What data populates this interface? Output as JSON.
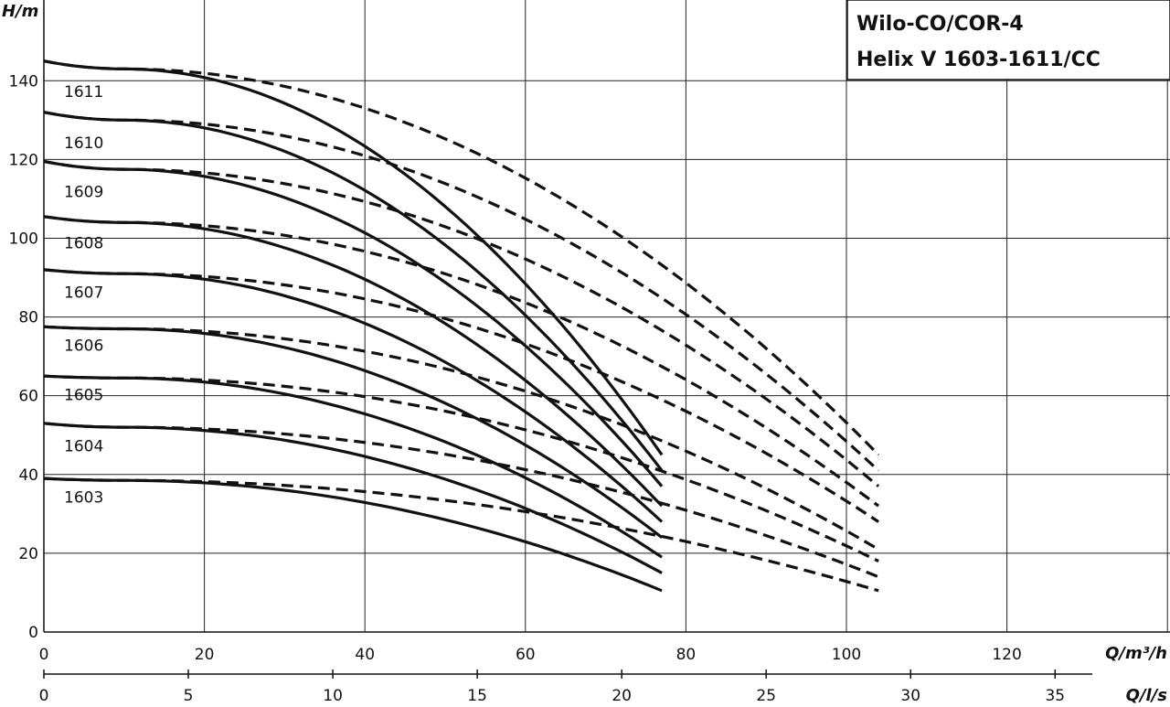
{
  "chart_data": {
    "type": "line",
    "title": [
      "Wilo-CO/COR-4",
      "Helix V 1603-1611/CC"
    ],
    "xlabel": "Q/m³/h",
    "x2label": "Q/l/s",
    "ylabel": "H/m",
    "xlim": [
      0,
      140
    ],
    "ylim": [
      0,
      140
    ],
    "x_ticks": [
      0,
      20,
      40,
      60,
      80,
      100,
      120
    ],
    "x2_ticks": [
      0,
      5,
      10,
      15,
      20,
      25,
      30,
      35
    ],
    "y_ticks": [
      0,
      20,
      40,
      60,
      80,
      100,
      120,
      140
    ],
    "grid": true,
    "line_styles": {
      "solid": "single pump curve",
      "dashed": "continuation"
    },
    "series": [
      {
        "name": "1611",
        "shutoff": 141,
        "peak": [
          10,
          143
        ],
        "solid_end": [
          77,
          45
        ],
        "dashed_end": [
          104,
          45
        ]
      },
      {
        "name": "1610",
        "shutoff": 128,
        "peak": [
          10,
          130
        ],
        "solid_end": [
          77,
          41
        ],
        "dashed_end": [
          104,
          41
        ]
      },
      {
        "name": "1609",
        "shutoff": 115.5,
        "peak": [
          10,
          117.5
        ],
        "solid_end": [
          77,
          37
        ],
        "dashed_end": [
          104,
          37
        ]
      },
      {
        "name": "1608",
        "shutoff": 102.5,
        "peak": [
          10,
          104
        ],
        "solid_end": [
          77,
          32
        ],
        "dashed_end": [
          104,
          32
        ]
      },
      {
        "name": "1607",
        "shutoff": 90,
        "peak": [
          10,
          91
        ],
        "solid_end": [
          77,
          28
        ],
        "dashed_end": [
          104,
          28
        ]
      },
      {
        "name": "1606",
        "shutoff": 76.5,
        "peak": [
          10,
          77
        ],
        "solid_end": [
          77,
          24
        ],
        "dashed_end": [
          104,
          21
        ]
      },
      {
        "name": "1605",
        "shutoff": 64,
        "peak": [
          10,
          64.5
        ],
        "solid_end": [
          77,
          19
        ],
        "dashed_end": [
          104,
          18
        ]
      },
      {
        "name": "1604",
        "shutoff": 51,
        "peak": [
          10,
          52
        ],
        "solid_end": [
          77,
          15
        ],
        "dashed_end": [
          104,
          14
        ]
      },
      {
        "name": "1603",
        "shutoff": 38,
        "peak": [
          10,
          38.5
        ],
        "solid_end": [
          77,
          10.5
        ],
        "dashed_end": [
          104,
          10.5
        ]
      }
    ]
  }
}
